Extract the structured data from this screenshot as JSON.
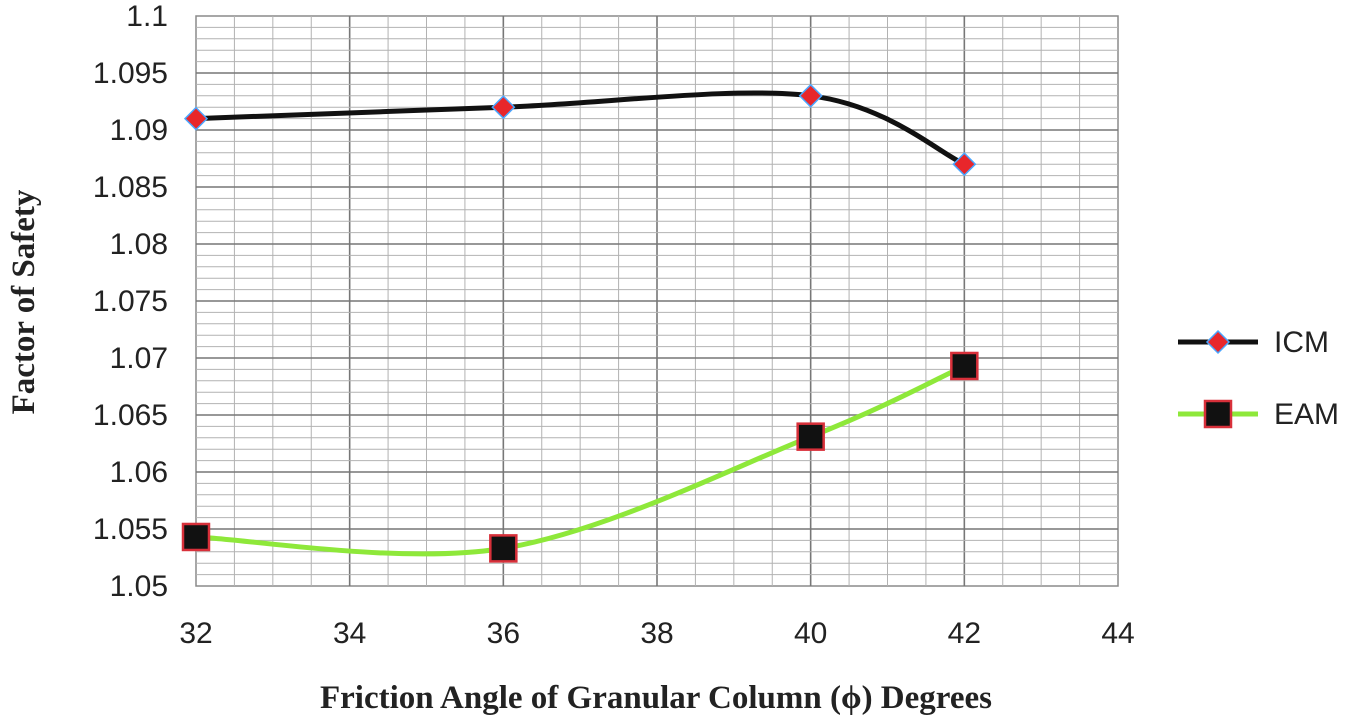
{
  "chart_data": {
    "type": "line",
    "title": "",
    "xlabel": "Friction Angle of Granular  Column (ϕ) Degrees",
    "ylabel": "Factor of Safety",
    "xlim": [
      32,
      44
    ],
    "ylim": [
      1.05,
      1.1
    ],
    "x_ticks": [
      "32",
      "34",
      "36",
      "38",
      "40",
      "42",
      "44"
    ],
    "y_ticks": [
      "1.05",
      "1.055",
      "1.06",
      "1.065",
      "1.07",
      "1.075",
      "1.08",
      "1.085",
      "1.09",
      "1.095",
      "1.1"
    ],
    "x_minor_step": 0.5,
    "y_minor_step": 0.001,
    "grid": true,
    "legend_position": "right",
    "series": [
      {
        "name": "ICM",
        "color": "#111111",
        "marker": "diamond",
        "marker_color": "#e8262b",
        "x": [
          32,
          36,
          40,
          42
        ],
        "y": [
          1.091,
          1.092,
          1.093,
          1.087
        ]
      },
      {
        "name": "EAM",
        "color": "#8ee83a",
        "marker": "square",
        "marker_color": "#111111",
        "x": [
          32,
          36,
          40,
          42
        ],
        "y": [
          1.0543,
          1.0533,
          1.0631,
          1.0693
        ]
      }
    ]
  }
}
